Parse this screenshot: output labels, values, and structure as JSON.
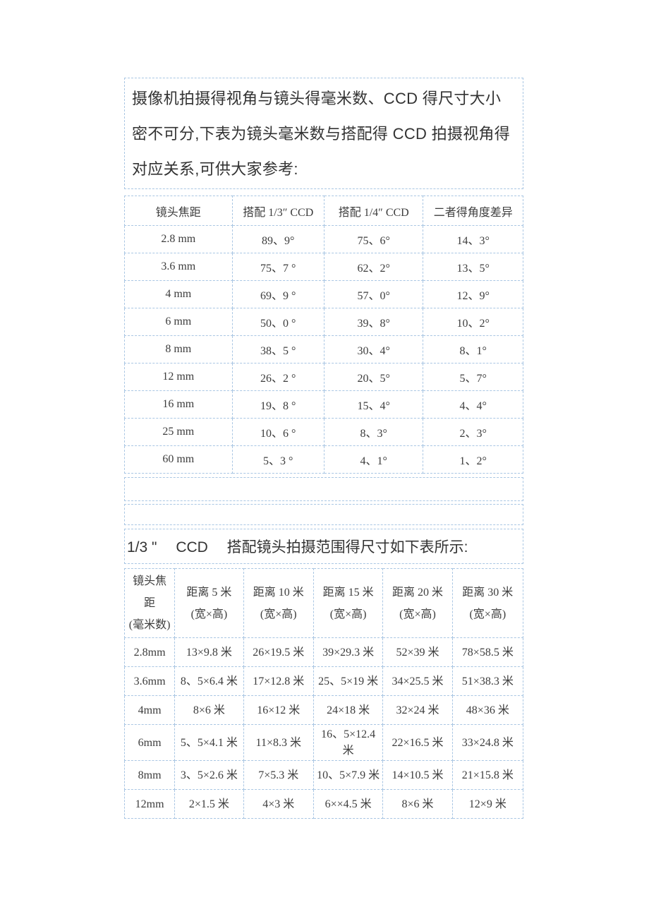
{
  "colors": {
    "page_background": "#ffffff",
    "table_border": "#a9c6e3",
    "body_text": "#333333",
    "table_text": "#3d3d3d"
  },
  "intro": {
    "text": "摄像机拍摄得视角与镜头得毫米数、CCD 得尺寸大小密不可分,下表为镜头毫米数与搭配得 CCD 拍摄视角得对应关系,可供大家参考:"
  },
  "section2": {
    "heading": "1/3 \"　 CCD　 搭配镜头拍摄范围得尺寸如下表所示:"
  },
  "lens_angle_table": {
    "headers": [
      "镜头焦距",
      "搭配 1/3″ CCD",
      "搭配 1/4″ CCD",
      "二者得角度差异"
    ],
    "rows": [
      [
        "2.8 mm",
        "89、9°",
        "75、6°",
        "14、3°"
      ],
      [
        "3.6 mm",
        "75、7 °",
        "62、2°",
        "13、5°"
      ],
      [
        "4 mm",
        "69、9 °",
        "57、0°",
        "12、9°"
      ],
      [
        "6 mm",
        "50、0 °",
        "39、8°",
        "10、2°"
      ],
      [
        "8 mm",
        "38、5 °",
        "30、4°",
        "8、1°"
      ],
      [
        "12 mm",
        "26、2 °",
        "20、5°",
        "5、7°"
      ],
      [
        "16 mm",
        "19、8 °",
        "15、4°",
        "4、4°"
      ],
      [
        "25 mm",
        "10、6 °",
        "8、3°",
        "2、3°"
      ],
      [
        "60 mm",
        "5、3 °",
        "4、1°",
        "1、2°"
      ]
    ]
  },
  "coverage_table": {
    "headers": [
      "镜头焦\n距\n(毫米数)",
      "距离 5 米\n(宽×高)",
      "距离 10 米\n(宽×高)",
      "距离 15 米\n(宽×高)",
      "距离 20 米\n(宽×高)",
      "距离 30 米\n(宽×高)"
    ],
    "rows": [
      [
        "2.8mm",
        "13×9.8 米",
        "26×19.5 米",
        "39×29.3 米",
        "52×39 米",
        "78×58.5 米"
      ],
      [
        "3.6mm",
        "8、5×6.4 米",
        "17×12.8 米",
        "25、5×19 米",
        "34×25.5 米",
        "51×38.3 米"
      ],
      [
        "4mm",
        "8×6 米",
        "16×12 米",
        "24×18 米",
        "32×24 米",
        "48×36 米"
      ],
      [
        "6mm",
        "5、5×4.1 米",
        "11×8.3 米",
        "16、5×12.4 米",
        "22×16.5 米",
        "33×24.8 米"
      ],
      [
        "8mm",
        "3、5×2.6 米",
        "7×5.3 米",
        "10、5×7.9 米",
        "14×10.5 米",
        "21×15.8 米"
      ],
      [
        "12mm",
        "2×1.5 米",
        "4×3 米",
        "6××4.5 米",
        "8×6 米",
        "12×9 米"
      ]
    ]
  }
}
